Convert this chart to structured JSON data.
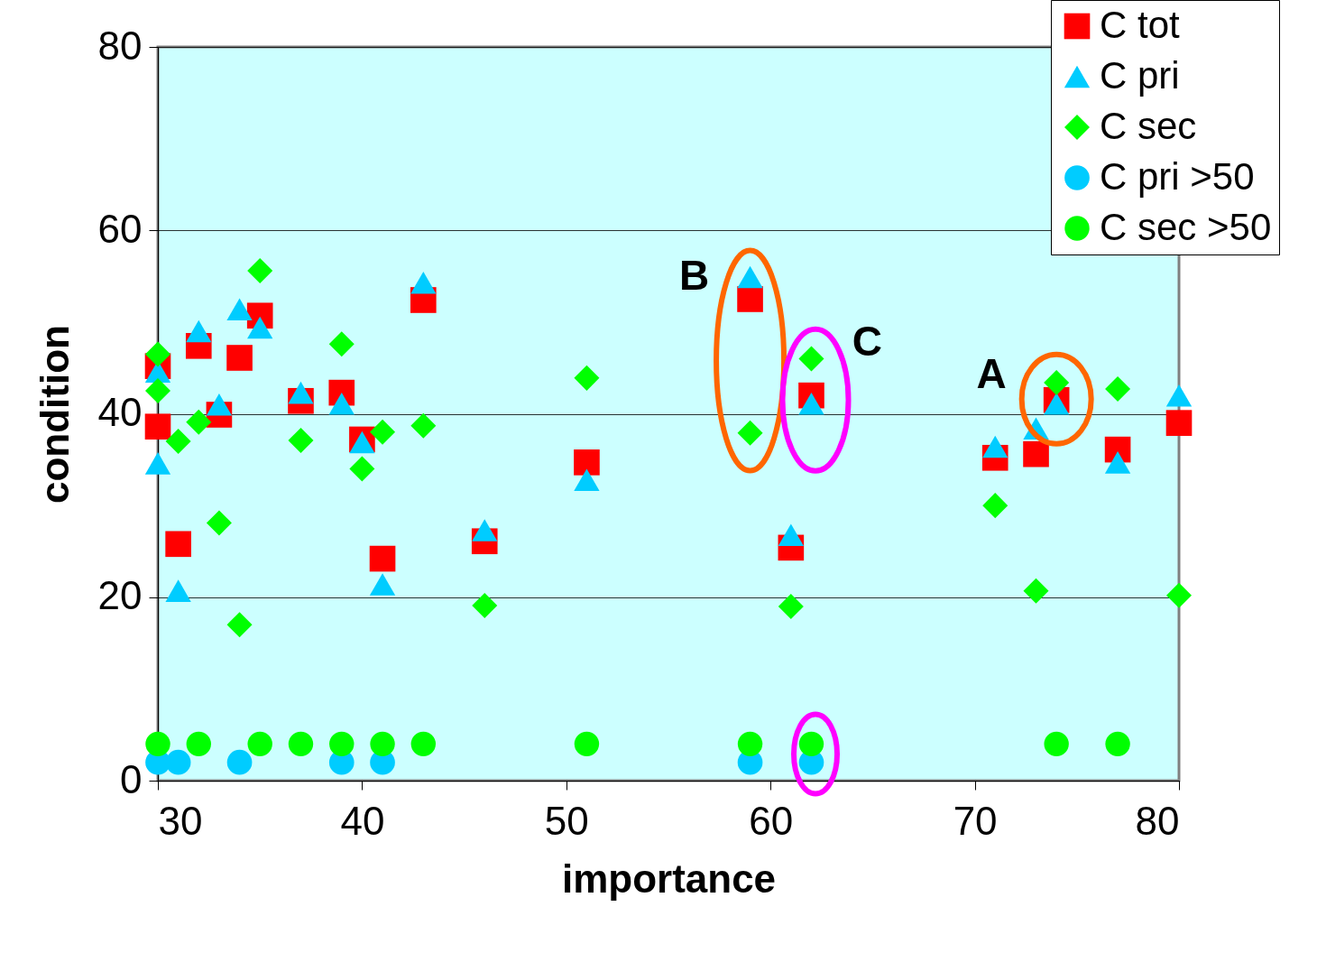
{
  "chart_data": {
    "type": "scatter",
    "xlabel": "importance",
    "ylabel": "condition",
    "xlim": [
      30,
      80
    ],
    "xticks": [
      30,
      40,
      50,
      60,
      70,
      80
    ],
    "ylim": [
      0,
      80
    ],
    "yticks": [
      0,
      20,
      40,
      60,
      80
    ],
    "grid": "y",
    "legend": "top right",
    "series": [
      {
        "name": "C tot",
        "color": "#ff0000",
        "marker": "square",
        "x": [
          30,
          30,
          31,
          32,
          33,
          34,
          35,
          37,
          39,
          40,
          41,
          43,
          46,
          51,
          59,
          61,
          62,
          71,
          73,
          74,
          77,
          80
        ],
        "values": [
          45.2,
          38.6,
          25.8,
          47.4,
          39.9,
          46.1,
          50.7,
          41.4,
          42.3,
          37.2,
          24.2,
          52.4,
          26.1,
          34.7,
          52.5,
          25.4,
          42.0,
          35.2,
          35.6,
          41.5,
          36.1,
          39.0
        ]
      },
      {
        "name": "C pri",
        "color": "#00ccff",
        "marker": "triangle",
        "x": [
          30,
          30,
          31,
          32,
          33,
          34,
          35,
          37,
          39,
          40,
          41,
          43,
          46,
          51,
          59,
          61,
          62,
          71,
          73,
          74,
          77,
          80
        ],
        "values": [
          44.6,
          34.6,
          20.7,
          49.0,
          41.0,
          51.4,
          49.4,
          42.3,
          41.1,
          36.9,
          21.4,
          54.3,
          27.3,
          32.8,
          54.9,
          26.8,
          41.1,
          36.4,
          38.4,
          41.1,
          34.7,
          42.0
        ]
      },
      {
        "name": "C sec",
        "color": "#00ff00",
        "marker": "diamond",
        "x": [
          30,
          30,
          31,
          32,
          33,
          34,
          35,
          37,
          39,
          40,
          41,
          43,
          46,
          51,
          59,
          61,
          62,
          71,
          73,
          74,
          77,
          80
        ],
        "values": [
          46.5,
          42.5,
          37.0,
          39.1,
          28.1,
          17.0,
          55.6,
          37.1,
          47.6,
          34.0,
          38.0,
          38.7,
          19.1,
          43.9,
          37.9,
          19.0,
          46.0,
          30.0,
          20.7,
          43.4,
          42.7,
          20.2
        ]
      },
      {
        "name": "C pri >50",
        "color": "#00ccff",
        "marker": "circle",
        "x": [
          30,
          31,
          34,
          39,
          41,
          59,
          62
        ],
        "values": [
          2,
          2,
          2,
          2,
          2,
          2,
          2
        ]
      },
      {
        "name": "C sec >50",
        "color": "#00ff00",
        "marker": "circle",
        "x": [
          30,
          32,
          35,
          37,
          39,
          41,
          43,
          51,
          59,
          62,
          74,
          77
        ],
        "values": [
          4,
          4,
          4,
          4,
          4,
          4,
          4,
          4,
          4,
          4,
          4,
          4
        ]
      }
    ],
    "annotations": [
      {
        "text": "B",
        "x": 59,
        "y": 54.9
      },
      {
        "text": "C",
        "x": 62,
        "y": 46.0
      },
      {
        "text": "A",
        "x": 74,
        "y": 43.4
      }
    ]
  }
}
